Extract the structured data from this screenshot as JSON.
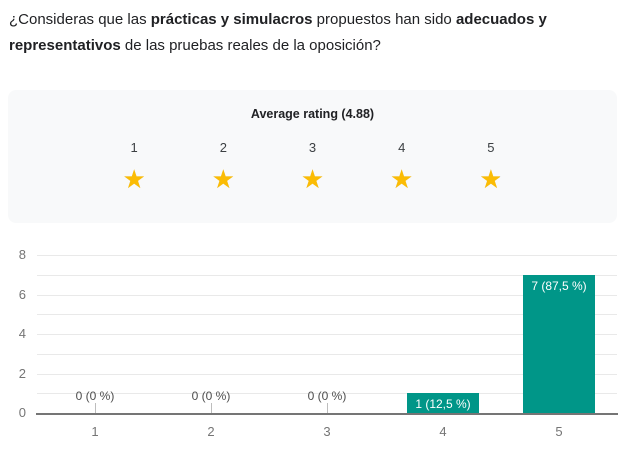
{
  "question": {
    "part1": "¿Consideras que las ",
    "bold1": "prácticas y simulacros",
    "part2": " propuestos han sido ",
    "bold2": "adecuados y representativos",
    "part3": " de las pruebas reales de la oposición?"
  },
  "rating": {
    "title": "Average rating (4.88)",
    "average": 4.88,
    "scale": [
      "1",
      "2",
      "3",
      "4",
      "5"
    ],
    "star_icon_glyph": "★",
    "star_fill_color": "#fbbc04",
    "star_empty_color": "#d9dbe0",
    "card_background": "#f8f9fa"
  },
  "chart_data": {
    "type": "bar",
    "title": "",
    "xlabel": "",
    "ylabel": "",
    "categories": [
      "1",
      "2",
      "3",
      "4",
      "5"
    ],
    "values": [
      0,
      0,
      0,
      1,
      7
    ],
    "labels": [
      "0 (0 %)",
      "0 (0 %)",
      "0 (0 %)",
      "1 (12,5 %)",
      "7 (87,5 %)"
    ],
    "ylim": [
      0,
      8
    ],
    "yticks": [
      0,
      2,
      4,
      6,
      8
    ],
    "grid": true,
    "legend": "none",
    "bar_color": "#009688"
  }
}
